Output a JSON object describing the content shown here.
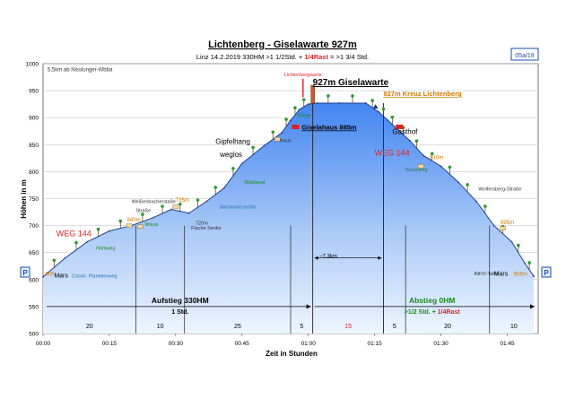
{
  "header": {
    "title": "Lichtenberg - Giselawarte 927m",
    "subtitle_pre": "Linz  14.2.2019   330HM    >1 1/2Std. + ",
    "subtitle_red": "1/4Rast",
    "subtitle_post": " = >1 3/4 Std.",
    "badge": "05a/19"
  },
  "colors": {
    "fill_top": "#2f76e8",
    "fill_bottom": "#e8f1ff",
    "red": "#e02020",
    "green": "#1a8a1a",
    "orange": "#d07800",
    "badge": "#1a4fb0"
  },
  "chart_data": {
    "type": "area",
    "title": "Lichtenberg - Giselawarte 927m",
    "xlabel": "Zeit in Stunden",
    "ylabel": "Höhen in m",
    "xlim": [
      0,
      112
    ],
    "ylim": [
      500,
      1000
    ],
    "x_ticks": [
      0,
      15,
      30,
      45,
      60,
      75,
      90,
      105
    ],
    "x_tick_labels": [
      "00:00",
      "00:15",
      "00:30",
      "00:45",
      "01:00",
      "01:15",
      "01:30",
      "01:45"
    ],
    "y_ticks": [
      500,
      550,
      600,
      650,
      700,
      750,
      800,
      850,
      900,
      950,
      1000
    ],
    "profile": {
      "x": [
        0,
        5,
        10,
        15,
        20,
        25,
        29,
        33,
        37,
        41,
        45,
        50,
        54,
        56,
        58,
        60,
        62,
        67,
        73,
        76,
        78,
        80,
        83,
        86,
        90,
        94,
        98,
        102,
        106,
        109,
        111
      ],
      "y": [
        605,
        640,
        670,
        690,
        700,
        715,
        730,
        723,
        745,
        770,
        815,
        848,
        872,
        895,
        915,
        925,
        927,
        927,
        927,
        910,
        895,
        880,
        857,
        830,
        810,
        780,
        745,
        700,
        670,
        630,
        606
      ]
    },
    "section_lines": [
      21,
      32,
      56,
      61,
      77,
      82,
      101
    ],
    "mid_lines": [
      61,
      77
    ],
    "segment_labels": [
      {
        "x": 10.5,
        "text": "20"
      },
      {
        "x": 26.5,
        "text": "10"
      },
      {
        "x": 44,
        "text": "25"
      },
      {
        "x": 58.5,
        "text": "5"
      },
      {
        "x": 69,
        "text": "15"
      },
      {
        "x": 79.5,
        "text": "5"
      },
      {
        "x": 91.5,
        "text": "20"
      },
      {
        "x": 106.5,
        "text": "10"
      }
    ],
    "annotations": [
      {
        "x": 1,
        "y": 986,
        "text": "5,5km ab Nisslunger-Wbba",
        "color": "#333333",
        "size": 6
      },
      {
        "x": 3,
        "y": 680,
        "text": "WEG 144",
        "color": "#e02020",
        "size": 9
      },
      {
        "x": 12,
        "y": 655,
        "text": "Hohlweg",
        "color": "#1a8a1a",
        "size": 5.5
      },
      {
        "x": 19,
        "y": 708,
        "text": "680m",
        "color": "#d07800",
        "size": 6
      },
      {
        "x": 23,
        "y": 699,
        "text": "Wiese",
        "color": "#1a8a1a",
        "size": 5.5
      },
      {
        "x": 20,
        "y": 742,
        "text": "Weißenbacherstaße",
        "color": "#333333",
        "size": 5.5
      },
      {
        "x": 30,
        "y": 744,
        "text": "735m",
        "color": "#d07800",
        "size": 6
      },
      {
        "x": 21,
        "y": 725,
        "text": "Straße",
        "color": "#333333",
        "size": 5.5
      },
      {
        "x": 34.5,
        "y": 702,
        "text": "720m",
        "color": "#333333",
        "size": 5.5
      },
      {
        "x": 33.5,
        "y": 693,
        "text": "Flache Senke",
        "color": "#333333",
        "size": 5.5
      },
      {
        "x": 40,
        "y": 732,
        "text": "Bachrand rechts",
        "color": "#1a6fb0",
        "size": 5.5
      },
      {
        "x": 39,
        "y": 851,
        "text": "Gipfelhang",
        "color": "#000000",
        "size": 8
      },
      {
        "x": 40,
        "y": 827,
        "text": "weglos",
        "color": "#000000",
        "size": 8
      },
      {
        "x": 45.5,
        "y": 777,
        "text": "Waldrand",
        "color": "#1a8a1a",
        "size": 5.5
      },
      {
        "x": 53.5,
        "y": 855,
        "text": "Haus",
        "color": "#333333",
        "size": 5.5
      },
      {
        "x": 57.5,
        "y": 901,
        "text": "Wiese",
        "color": "#1a8a1a",
        "size": 5.5
      },
      {
        "x": 54.5,
        "y": 977,
        "text": "Lichtenbergwarte",
        "color": "#e02020",
        "size": 5.5
      },
      {
        "x": 79,
        "y": 870,
        "text": "Gasthof",
        "color": "#000000",
        "size": 8
      },
      {
        "x": 75,
        "y": 830,
        "text": "WEG 144",
        "color": "#e02020",
        "size": 9
      },
      {
        "x": 87.5,
        "y": 823,
        "text": "810m",
        "color": "#d07800",
        "size": 6
      },
      {
        "x": 82,
        "y": 801,
        "text": "Kreuzweg",
        "color": "#1a8a1a",
        "size": 5.5
      },
      {
        "x": 98.5,
        "y": 765,
        "text": "Wolfersberg-Straße",
        "color": "#333333",
        "size": 5.5
      },
      {
        "x": 103.5,
        "y": 703,
        "text": "695m",
        "color": "#d07800",
        "size": 6
      },
      {
        "x": 97.5,
        "y": 608,
        "text": "INFO-Tafel",
        "color": "#333333",
        "size": 5.5
      },
      {
        "x": 62.5,
        "y": 640,
        "text": "~7,3km",
        "color": "#000000",
        "size": 6
      },
      {
        "x": 0.5,
        "y": 607,
        "text": "605",
        "color": "#d07800",
        "size": 6
      },
      {
        "x": 2.5,
        "y": 604,
        "text": "Mars",
        "color": "#000000",
        "size": 7
      },
      {
        "x": 6.5,
        "y": 604,
        "text": "Cosmi. Planetenweg",
        "color": "#1a6fb0",
        "size": 5.5
      },
      {
        "x": 102,
        "y": 607,
        "text": "Mars",
        "color": "#000000",
        "size": 7
      },
      {
        "x": 106.5,
        "y": 607,
        "text": "605m",
        "color": "#d07800",
        "size": 6
      }
    ],
    "summit_label": {
      "x": 61,
      "y": 960,
      "text": "927m Giselawarte"
    },
    "gisela_label": {
      "x": 58.5,
      "y": 878,
      "text": "Giselahaus 885m"
    },
    "kreuz_label": {
      "x": 77,
      "y": 940,
      "text": "927m Kreuz Lichtenberg"
    },
    "ascent": {
      "label": "Aufstieg 330HM",
      "time": "1 Std."
    },
    "descent": {
      "label": "Abstieg 0HM",
      "time": ">1/2 Std. + 1/4Rast"
    },
    "parking": "P"
  }
}
